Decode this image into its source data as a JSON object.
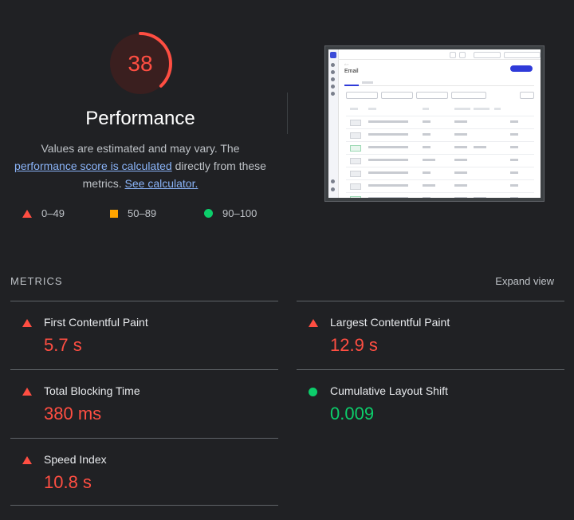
{
  "performance": {
    "score": "38",
    "score_fraction": 0.38,
    "title": "Performance",
    "desc_prefix": "Values are estimated and may vary. The ",
    "desc_link1": "performance score is calculated",
    "desc_middle": " directly from these metrics. ",
    "desc_link2": "See calculator.",
    "colors": {
      "fail": "#ff4e42",
      "average": "#ffa400",
      "pass": "#0cce6b"
    }
  },
  "legend": [
    {
      "icon": "red-triangle-icon",
      "label": "0–49"
    },
    {
      "icon": "orange-square-icon",
      "label": "50–89"
    },
    {
      "icon": "green-circle-icon",
      "label": "90–100"
    }
  ],
  "metrics": {
    "header": "METRICS",
    "expand_label": "Expand view",
    "items": [
      {
        "name": "First Contentful Paint",
        "value": "5.7 s",
        "status": "fail"
      },
      {
        "name": "Largest Contentful Paint",
        "value": "12.9 s",
        "status": "fail"
      },
      {
        "name": "Total Blocking Time",
        "value": "380 ms",
        "status": "fail"
      },
      {
        "name": "Cumulative Layout Shift",
        "value": "0.009",
        "status": "pass"
      },
      {
        "name": "Speed Index",
        "value": "10.8 s",
        "status": "fail"
      }
    ]
  },
  "thumbnail": {
    "heading": "Email"
  }
}
